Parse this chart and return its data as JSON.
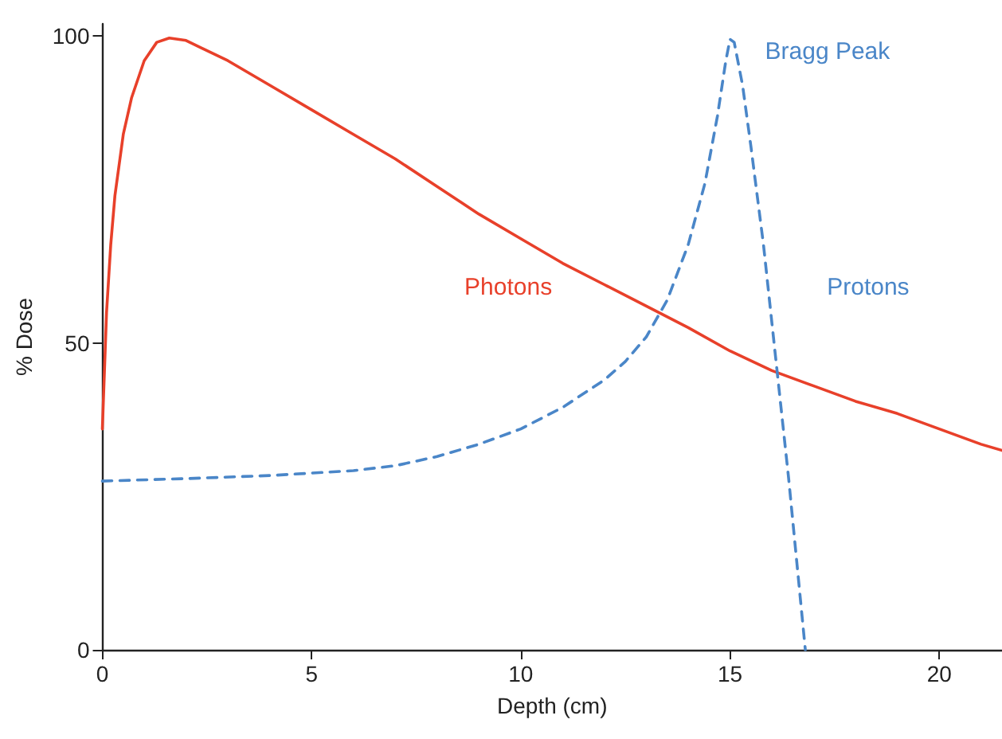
{
  "chart_data": {
    "type": "line",
    "xlabel": "Depth (cm)",
    "ylabel": "% Dose",
    "xlim": [
      0,
      21.5
    ],
    "ylim": [
      0,
      102
    ],
    "xticks": [
      0,
      5,
      10,
      15,
      20
    ],
    "yticks": [
      0,
      50,
      100
    ],
    "grid": false,
    "legend": false,
    "marker": "none",
    "annotations": [
      {
        "text": "Bragg Peak",
        "x": 15,
        "y": 100
      }
    ],
    "series": [
      {
        "name": "Photons",
        "color": "#e8402a",
        "line_style": "solid",
        "x": [
          0,
          0.1,
          0.2,
          0.3,
          0.5,
          0.7,
          1,
          1.3,
          1.6,
          2,
          3,
          4,
          5,
          6,
          7,
          8,
          9,
          10,
          11,
          12,
          13,
          14,
          15,
          16,
          17,
          18,
          19,
          20,
          21,
          21.5
        ],
        "values": [
          36,
          55,
          66,
          74,
          84,
          90,
          96,
          99,
          99.7,
          99.3,
          96,
          92,
          88,
          84,
          80,
          75.5,
          71,
          67,
          63,
          59.5,
          56,
          52.5,
          48.7,
          45.5,
          43,
          40.5,
          38.5,
          36,
          33.5,
          32.5
        ]
      },
      {
        "name": "Protons",
        "color": "#4a86c8",
        "line_style": "dashed",
        "x": [
          0,
          2,
          4,
          6,
          7,
          8,
          9,
          10,
          11,
          12,
          12.5,
          13,
          13.5,
          14,
          14.4,
          14.7,
          14.9,
          15,
          15.1,
          15.3,
          15.5,
          15.8,
          16.1,
          16.4,
          16.8
        ],
        "values": [
          27.5,
          27.9,
          28.4,
          29.2,
          30,
          31.5,
          33.5,
          36,
          39.5,
          44,
          47,
          51,
          57,
          66,
          76,
          87,
          96,
          99.5,
          99,
          92,
          82,
          66,
          47,
          28,
          0
        ]
      }
    ]
  }
}
